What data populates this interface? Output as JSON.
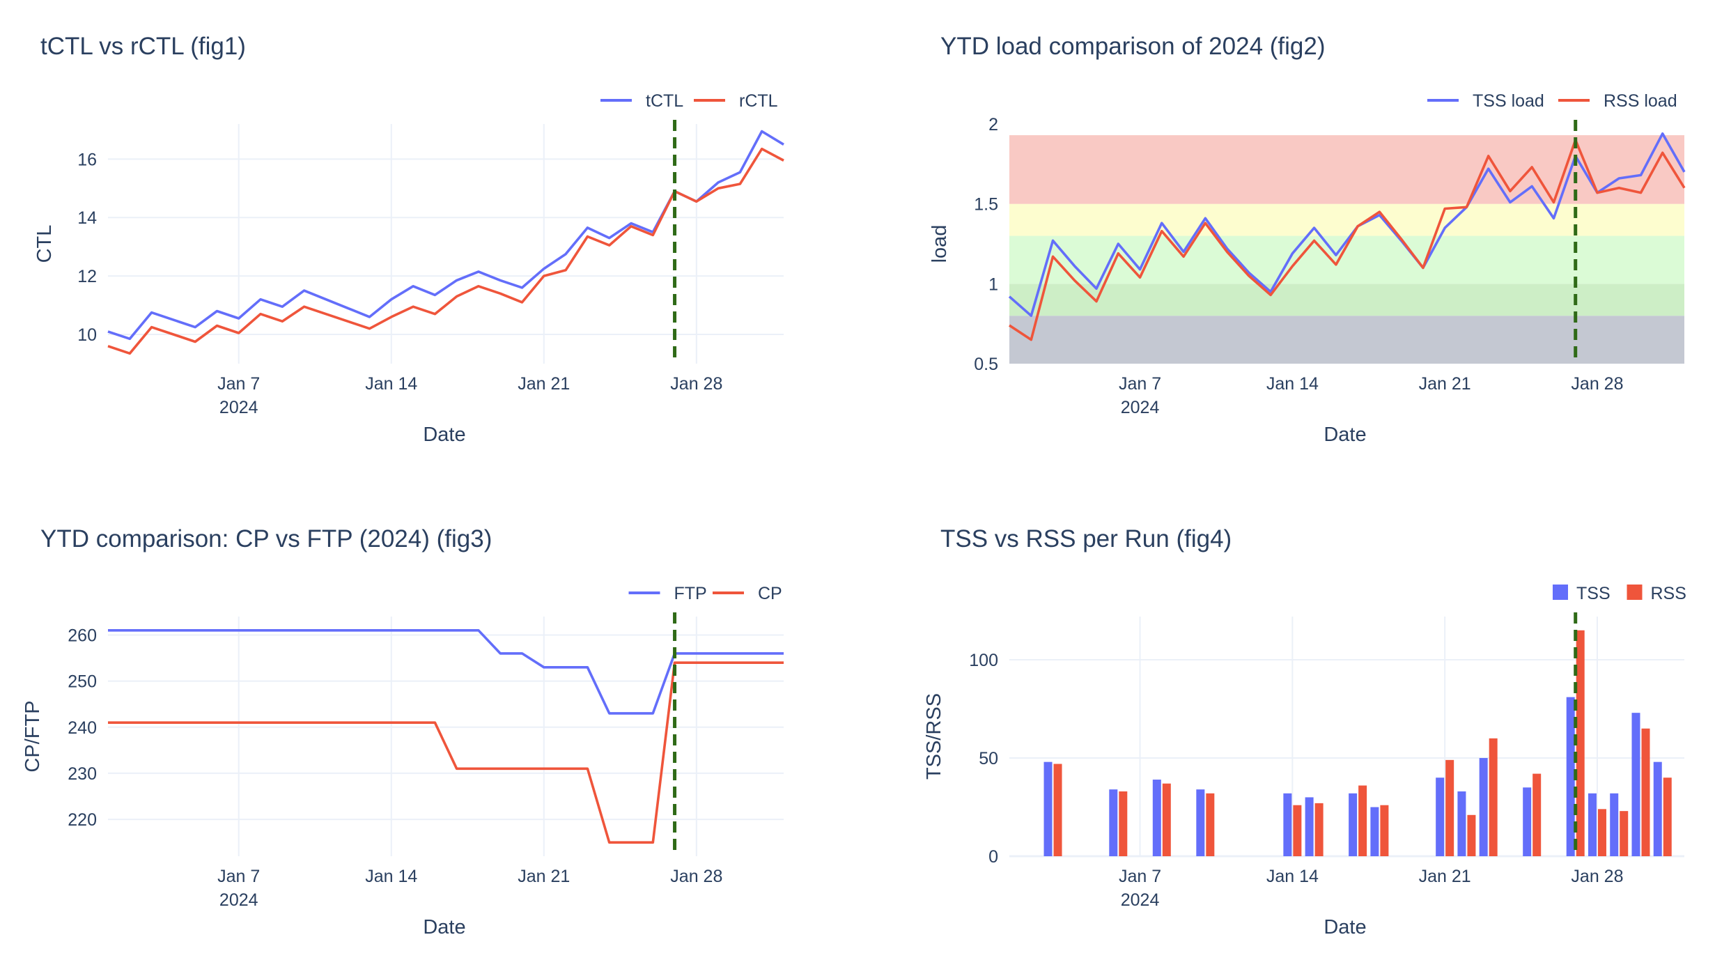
{
  "chart_data": [
    {
      "type": "line",
      "title": "tCTL vs rCTL (fig1)",
      "xlabel": "Date",
      "ylabel": "CTL",
      "xticks": [
        "Jan 7",
        "Jan 14",
        "Jan 21",
        "Jan 28"
      ],
      "xyear": "2024",
      "xrange": [
        1,
        32
      ],
      "ylim": [
        9.0,
        17.2
      ],
      "yticks": [
        10,
        12,
        14,
        16
      ],
      "marker_date": 27,
      "x": [
        1,
        2,
        3,
        4,
        5,
        6,
        7,
        8,
        9,
        10,
        11,
        12,
        13,
        14,
        15,
        16,
        17,
        18,
        19,
        20,
        21,
        22,
        23,
        24,
        25,
        26,
        27,
        28,
        29,
        30,
        31,
        32
      ],
      "series": [
        {
          "name": "tCTL",
          "color": "#636efa",
          "values": [
            10.1,
            9.85,
            10.75,
            10.5,
            10.25,
            10.8,
            10.55,
            11.2,
            10.95,
            11.5,
            11.2,
            10.9,
            10.6,
            11.2,
            11.65,
            11.35,
            11.85,
            12.15,
            11.85,
            11.6,
            12.25,
            12.75,
            13.65,
            13.3,
            13.8,
            13.5,
            14.9,
            14.55,
            15.2,
            15.55,
            16.95,
            16.5
          ]
        },
        {
          "name": "rCTL",
          "color": "#ef553b",
          "values": [
            9.6,
            9.35,
            10.25,
            10.0,
            9.75,
            10.3,
            10.05,
            10.7,
            10.45,
            10.95,
            10.7,
            10.45,
            10.2,
            10.6,
            10.95,
            10.7,
            11.3,
            11.65,
            11.4,
            11.1,
            12.0,
            12.2,
            13.35,
            13.05,
            13.7,
            13.4,
            14.9,
            14.55,
            15.0,
            15.15,
            16.35,
            15.95
          ]
        }
      ]
    },
    {
      "type": "line",
      "title": "YTD load comparison of 2024 (fig2)",
      "xlabel": "Date",
      "ylabel": "load",
      "xticks": [
        "Jan 7",
        "Jan 14",
        "Jan 21",
        "Jan 28"
      ],
      "xyear": "2024",
      "xrange": [
        1,
        32
      ],
      "ylim": [
        0.5,
        2.0
      ],
      "yticks": [
        0.5,
        1,
        1.5,
        2
      ],
      "ytick_labels": [
        "0.5",
        "1",
        "1.5",
        "2"
      ],
      "marker_date": 27,
      "bands": [
        {
          "from": 0.5,
          "to": 0.8,
          "color": "#c4c8d2"
        },
        {
          "from": 0.8,
          "to": 1.0,
          "color": "#cdeec6"
        },
        {
          "from": 1.0,
          "to": 1.3,
          "color": "#dbfbd6"
        },
        {
          "from": 1.3,
          "to": 1.5,
          "color": "#fdfdcf"
        },
        {
          "from": 1.5,
          "to": 1.93,
          "color": "#f9c9c4"
        }
      ],
      "x": [
        1,
        2,
        3,
        4,
        5,
        6,
        7,
        8,
        9,
        10,
        11,
        12,
        13,
        14,
        15,
        16,
        17,
        18,
        19,
        20,
        21,
        22,
        23,
        24,
        25,
        26,
        27,
        28,
        29,
        30,
        31,
        32
      ],
      "series": [
        {
          "name": "TSS load",
          "color": "#636efa",
          "values": [
            0.92,
            0.8,
            1.27,
            1.11,
            0.97,
            1.25,
            1.09,
            1.38,
            1.2,
            1.41,
            1.22,
            1.07,
            0.95,
            1.19,
            1.35,
            1.18,
            1.36,
            1.43,
            1.27,
            1.1,
            1.35,
            1.48,
            1.72,
            1.51,
            1.61,
            1.41,
            1.8,
            1.57,
            1.66,
            1.68,
            1.94,
            1.7
          ]
        },
        {
          "name": "RSS load",
          "color": "#ef553b",
          "values": [
            0.74,
            0.65,
            1.17,
            1.02,
            0.89,
            1.19,
            1.04,
            1.33,
            1.17,
            1.38,
            1.2,
            1.05,
            0.93,
            1.11,
            1.27,
            1.12,
            1.36,
            1.45,
            1.28,
            1.1,
            1.47,
            1.48,
            1.8,
            1.58,
            1.73,
            1.51,
            1.9,
            1.57,
            1.6,
            1.57,
            1.82,
            1.6
          ]
        }
      ]
    },
    {
      "type": "line",
      "title": "YTD comparison: CP vs FTP (2024) (fig3)",
      "xlabel": "Date",
      "ylabel": "CP/FTP",
      "xticks": [
        "Jan 7",
        "Jan 14",
        "Jan 21",
        "Jan 28"
      ],
      "xyear": "2024",
      "xrange": [
        1,
        32
      ],
      "ylim": [
        212,
        264
      ],
      "yticks": [
        220,
        230,
        240,
        250,
        260
      ],
      "marker_date": 27,
      "x": [
        1,
        2,
        3,
        4,
        5,
        6,
        7,
        8,
        9,
        10,
        11,
        12,
        13,
        14,
        15,
        16,
        17,
        18,
        19,
        20,
        21,
        22,
        23,
        24,
        25,
        26,
        27,
        28,
        29,
        30,
        31,
        32
      ],
      "series": [
        {
          "name": "FTP",
          "color": "#636efa",
          "values": [
            261,
            261,
            261,
            261,
            261,
            261,
            261,
            261,
            261,
            261,
            261,
            261,
            261,
            261,
            261,
            261,
            261,
            261,
            256,
            256,
            253,
            253,
            253,
            243,
            243,
            243,
            256,
            256,
            256,
            256,
            256,
            256
          ]
        },
        {
          "name": "CP",
          "color": "#ef553b",
          "values": [
            241,
            241,
            241,
            241,
            241,
            241,
            241,
            241,
            241,
            241,
            241,
            241,
            241,
            241,
            241,
            241,
            231,
            231,
            231,
            231,
            231,
            231,
            231,
            215,
            215,
            215,
            254,
            254,
            254,
            254,
            254,
            254
          ]
        }
      ]
    },
    {
      "type": "bar",
      "title": "TSS vs RSS per Run (fig4)",
      "xlabel": "Date",
      "ylabel": "TSS/RSS",
      "xticks": [
        "Jan 7",
        "Jan 14",
        "Jan 21",
        "Jan 28"
      ],
      "xyear": "2024",
      "xrange": [
        1,
        32
      ],
      "ylim": [
        0,
        122
      ],
      "yticks": [
        0,
        50,
        100
      ],
      "marker_date": 27,
      "x": [
        3,
        6,
        8,
        10,
        14,
        15,
        17,
        18,
        21,
        22,
        23,
        25,
        27,
        28,
        29,
        30,
        31
      ],
      "series": [
        {
          "name": "TSS",
          "color": "#636efa",
          "values": [
            48,
            34,
            39,
            34,
            32,
            30,
            32,
            25,
            40,
            33,
            50,
            35,
            81,
            32,
            32,
            73,
            48
          ]
        },
        {
          "name": "RSS",
          "color": "#ef553b",
          "values": [
            47,
            33,
            37,
            32,
            26,
            27,
            36,
            26,
            49,
            21,
            60,
            42,
            115,
            24,
            23,
            65,
            40
          ]
        }
      ]
    }
  ]
}
